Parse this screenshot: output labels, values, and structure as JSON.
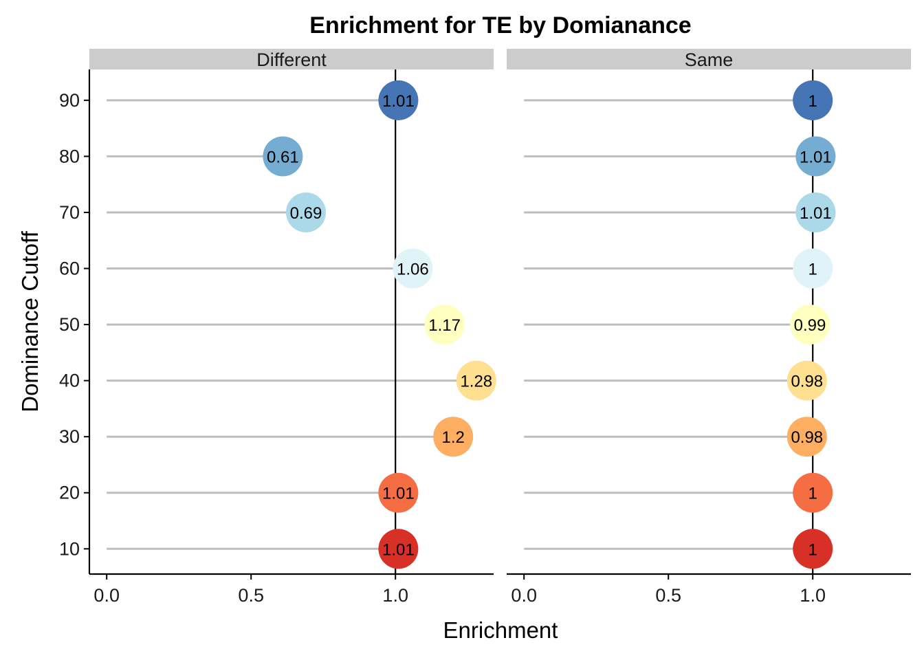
{
  "chart_data": {
    "type": "lollipop",
    "title": "Enrichment for TE by Domianance",
    "xlabel": "Enrichment",
    "ylabel": "Dominance Cutoff",
    "xlim": [
      -0.06,
      1.34
    ],
    "x_ticks": [
      "0.0",
      "0.5",
      "1.0"
    ],
    "y_ticks": [
      "10",
      "20",
      "30",
      "40",
      "50",
      "60",
      "70",
      "80",
      "90"
    ],
    "reference_line": 1.0,
    "grid": false,
    "legend": "none",
    "point_colors": {
      "10": "#d73027",
      "20": "#f46d43",
      "30": "#fdae61",
      "40": "#fee090",
      "50": "#ffffbf",
      "60": "#e0f3f8",
      "70": "#abd9e9",
      "80": "#74add1",
      "90": "#4575b4"
    },
    "panels": [
      {
        "name": "Different",
        "points": [
          {
            "cutoff": 90,
            "value": 1.01,
            "label": "1.01"
          },
          {
            "cutoff": 80,
            "value": 0.61,
            "label": "0.61"
          },
          {
            "cutoff": 70,
            "value": 0.69,
            "label": "0.69"
          },
          {
            "cutoff": 60,
            "value": 1.06,
            "label": "1.06"
          },
          {
            "cutoff": 50,
            "value": 1.17,
            "label": "1.17"
          },
          {
            "cutoff": 40,
            "value": 1.28,
            "label": "1.28"
          },
          {
            "cutoff": 30,
            "value": 1.2,
            "label": "1.2"
          },
          {
            "cutoff": 20,
            "value": 1.01,
            "label": "1.01"
          },
          {
            "cutoff": 10,
            "value": 1.01,
            "label": "1.01"
          }
        ]
      },
      {
        "name": "Same",
        "points": [
          {
            "cutoff": 90,
            "value": 1.0,
            "label": "1"
          },
          {
            "cutoff": 80,
            "value": 1.01,
            "label": "1.01"
          },
          {
            "cutoff": 70,
            "value": 1.01,
            "label": "1.01"
          },
          {
            "cutoff": 60,
            "value": 1.0,
            "label": "1"
          },
          {
            "cutoff": 50,
            "value": 0.99,
            "label": "0.99"
          },
          {
            "cutoff": 40,
            "value": 0.98,
            "label": "0.98"
          },
          {
            "cutoff": 30,
            "value": 0.98,
            "label": "0.98"
          },
          {
            "cutoff": 20,
            "value": 1.0,
            "label": "1"
          },
          {
            "cutoff": 10,
            "value": 1.0,
            "label": "1"
          }
        ]
      }
    ]
  }
}
